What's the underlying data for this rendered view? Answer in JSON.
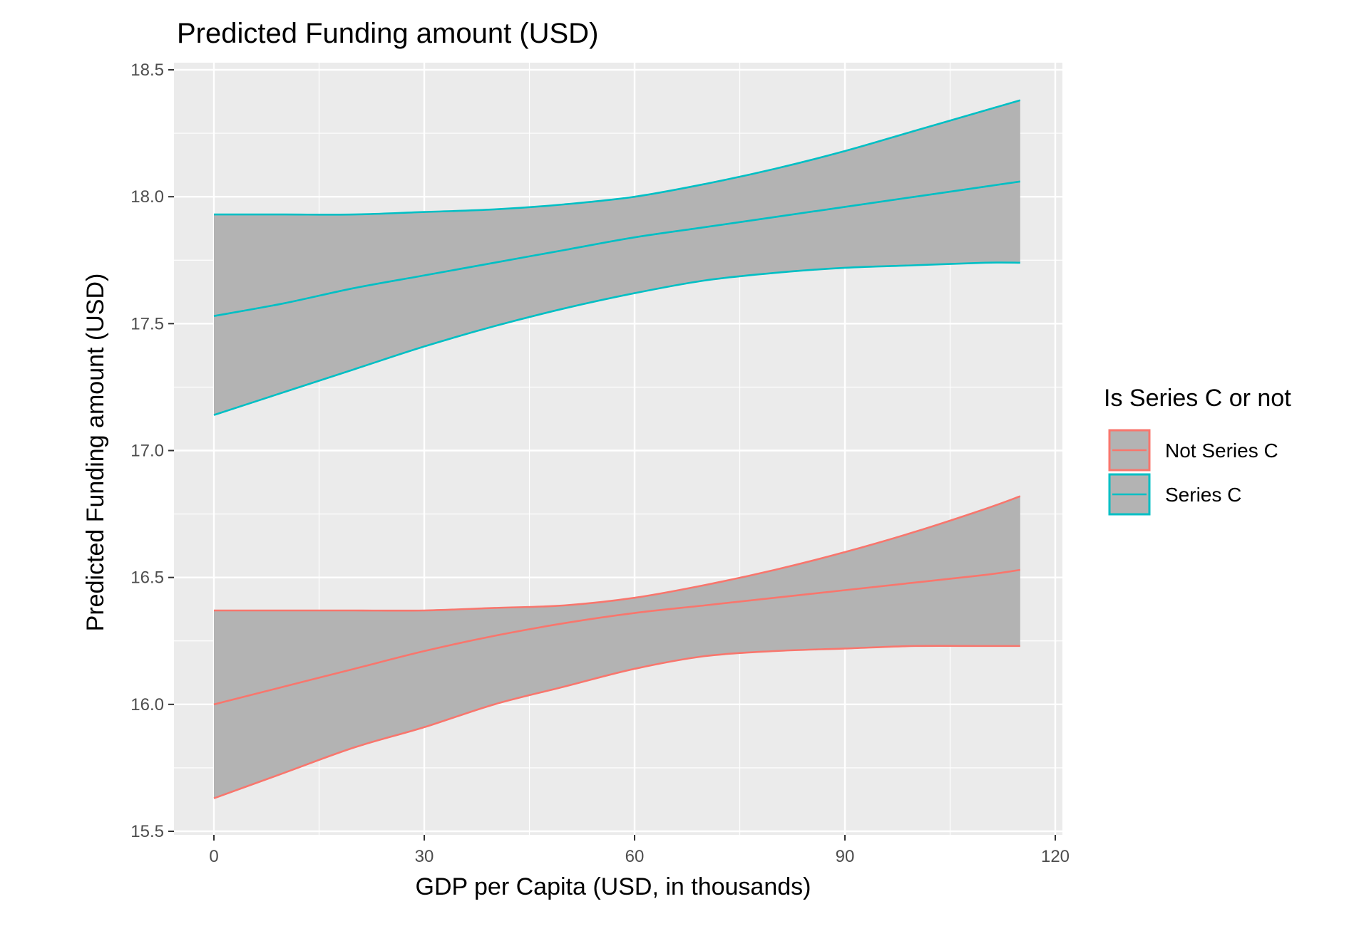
{
  "chart_data": {
    "type": "line",
    "title": "Predicted Funding amount (USD)",
    "xlabel": "GDP per Capita (USD, in thousands)",
    "ylabel": "Predicted Funding amount (USD)",
    "xlim": [
      -5,
      120
    ],
    "ylim": [
      15.5,
      18.5
    ],
    "x_ticks": [
      "0",
      "30",
      "60",
      "90",
      "120"
    ],
    "y_ticks": [
      "15.5",
      "16.0",
      "16.5",
      "17.0",
      "17.5",
      "18.0",
      "18.5"
    ],
    "grid": true,
    "legend": {
      "title": "Is Series C or not",
      "position": "right"
    },
    "ribbon_color": "#b3b3b3",
    "panel_background": "#ebebeb",
    "series": [
      {
        "name": "Not Series C",
        "color": "#f8766d",
        "x": [
          0,
          10,
          20,
          30,
          40,
          50,
          60,
          70,
          80,
          90,
          100,
          110,
          115
        ],
        "fit": [
          16.0,
          16.07,
          16.14,
          16.21,
          16.27,
          16.32,
          16.36,
          16.39,
          16.42,
          16.45,
          16.48,
          16.51,
          16.53
        ],
        "lower": [
          15.63,
          15.73,
          15.83,
          15.91,
          16.0,
          16.07,
          16.14,
          16.19,
          16.21,
          16.22,
          16.23,
          16.23,
          16.23
        ],
        "upper": [
          16.37,
          16.37,
          16.37,
          16.37,
          16.38,
          16.39,
          16.42,
          16.47,
          16.53,
          16.6,
          16.68,
          16.77,
          16.82
        ]
      },
      {
        "name": "Series C",
        "color": "#00bfc4",
        "x": [
          0,
          10,
          20,
          30,
          40,
          50,
          60,
          70,
          80,
          90,
          100,
          110,
          115
        ],
        "fit": [
          17.53,
          17.58,
          17.64,
          17.69,
          17.74,
          17.79,
          17.84,
          17.88,
          17.92,
          17.96,
          18.0,
          18.04,
          18.06
        ],
        "lower": [
          17.14,
          17.23,
          17.32,
          17.41,
          17.49,
          17.56,
          17.62,
          17.67,
          17.7,
          17.72,
          17.73,
          17.74,
          17.74
        ],
        "upper": [
          17.93,
          17.93,
          17.93,
          17.94,
          17.95,
          17.97,
          18.0,
          18.05,
          18.11,
          18.18,
          18.26,
          18.34,
          18.38
        ]
      }
    ]
  }
}
